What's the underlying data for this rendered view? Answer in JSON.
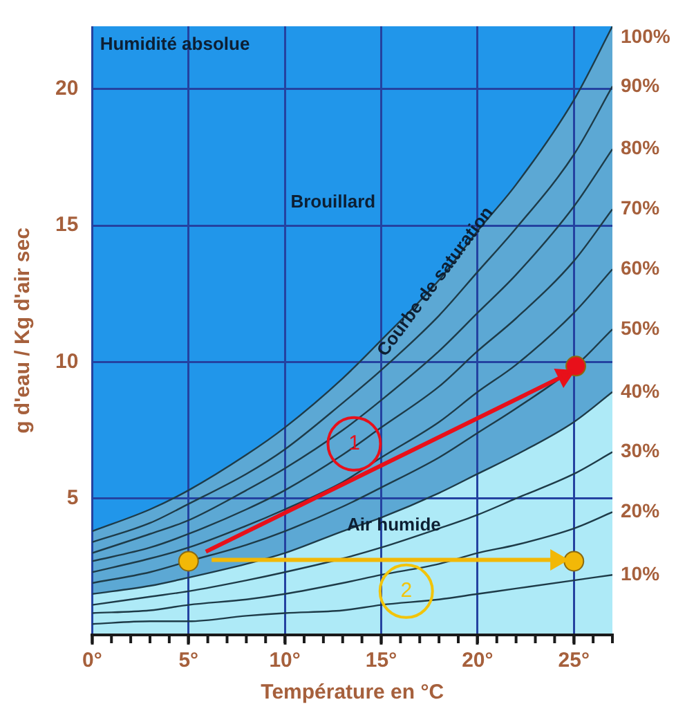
{
  "chart_data": {
    "type": "line",
    "xlabel": "Température en °C",
    "ylabel": "g d'eau / Kg d'air sec",
    "x": [
      0,
      3,
      5,
      8,
      10,
      13,
      15,
      18,
      20,
      22,
      25,
      27
    ],
    "xlim": [
      0,
      27
    ],
    "ylim": [
      0,
      22.3
    ],
    "xticks": [
      {
        "value": 0,
        "label": "0°"
      },
      {
        "value": 5,
        "label": "5°"
      },
      {
        "value": 10,
        "label": "10°"
      },
      {
        "value": 15,
        "label": "15°"
      },
      {
        "value": 20,
        "label": "20°"
      },
      {
        "value": 25,
        "label": "25°"
      }
    ],
    "yticks": [
      5,
      10,
      15,
      20
    ],
    "grid": true,
    "legend": false,
    "marker": "none",
    "series": [
      {
        "name": "10%",
        "color": "#1e3b48",
        "values": [
          0.4,
          0.5,
          0.5,
          0.7,
          0.8,
          0.9,
          1.1,
          1.3,
          1.5,
          1.7,
          2.0,
          2.2
        ]
      },
      {
        "name": "20%",
        "color": "#1e3b48",
        "values": [
          0.8,
          0.9,
          1.1,
          1.3,
          1.5,
          1.9,
          2.2,
          2.6,
          3.0,
          3.3,
          3.9,
          4.5
        ]
      },
      {
        "name": "30%",
        "color": "#1e3b48",
        "values": [
          1.1,
          1.4,
          1.6,
          2.0,
          2.3,
          2.8,
          3.2,
          3.9,
          4.4,
          5.0,
          5.9,
          6.7
        ]
      },
      {
        "name": "40%",
        "type": "area",
        "color": "#aeeaf7",
        "values": [
          1.5,
          1.8,
          2.1,
          2.6,
          3.0,
          3.8,
          4.3,
          5.2,
          5.9,
          6.6,
          7.8,
          8.9
        ]
      },
      {
        "name": "50%",
        "color": "#1e3b48",
        "values": [
          1.9,
          2.3,
          2.7,
          3.3,
          3.8,
          4.7,
          5.4,
          6.5,
          7.4,
          8.3,
          9.8,
          11.2
        ]
      },
      {
        "name": "60%",
        "color": "#1e3b48",
        "values": [
          2.3,
          2.8,
          3.2,
          4.0,
          4.6,
          5.6,
          6.5,
          7.8,
          8.9,
          9.9,
          11.8,
          13.4
        ]
      },
      {
        "name": "70%",
        "color": "#1e3b48",
        "values": [
          2.7,
          3.2,
          3.7,
          4.6,
          5.3,
          6.6,
          7.6,
          9.1,
          10.4,
          11.6,
          13.7,
          15.6
        ]
      },
      {
        "name": "80%",
        "color": "#1e3b48",
        "values": [
          3.0,
          3.7,
          4.2,
          5.3,
          6.1,
          7.5,
          8.6,
          10.4,
          11.8,
          13.2,
          15.7,
          17.8
        ]
      },
      {
        "name": "90%",
        "color": "#1e3b48",
        "values": [
          3.4,
          4.1,
          4.8,
          5.9,
          6.8,
          8.5,
          9.7,
          11.7,
          13.3,
          14.9,
          17.6,
          20.1
        ]
      },
      {
        "name": "100%",
        "type": "area",
        "color": "#5ca8d4",
        "values": [
          3.8,
          4.6,
          5.3,
          6.6,
          7.6,
          9.4,
          10.8,
          13.0,
          14.8,
          16.5,
          19.6,
          22.3
        ]
      },
      {
        "type": "line",
        "color": "#e8101a",
        "marker": "triangle",
        "x": [
          5.9,
          24.5
        ],
        "values": [
          3.05,
          9.5
        ]
      },
      {
        "type": "line",
        "color": "#f2b807",
        "marker": "triangle",
        "x": [
          6.2,
          24.1
        ],
        "values": [
          2.75,
          2.75
        ]
      },
      {
        "type": "scatter",
        "color": "#f2b807",
        "marker": "circle",
        "x": [
          5,
          25
        ],
        "values": [
          2.7,
          2.7
        ]
      },
      {
        "type": "scatter",
        "color": "#e8101a",
        "marker": "circle",
        "x": [
          25.1
        ],
        "values": [
          9.85
        ]
      }
    ],
    "annotations": [
      "Humidité absolue",
      "Brouillard",
      "Courbe de saturation",
      "Air humide",
      {
        "text": "1",
        "x": 13.6,
        "y": 7.0
      },
      {
        "text": "2",
        "x": 16.3,
        "y": 1.6
      }
    ]
  }
}
